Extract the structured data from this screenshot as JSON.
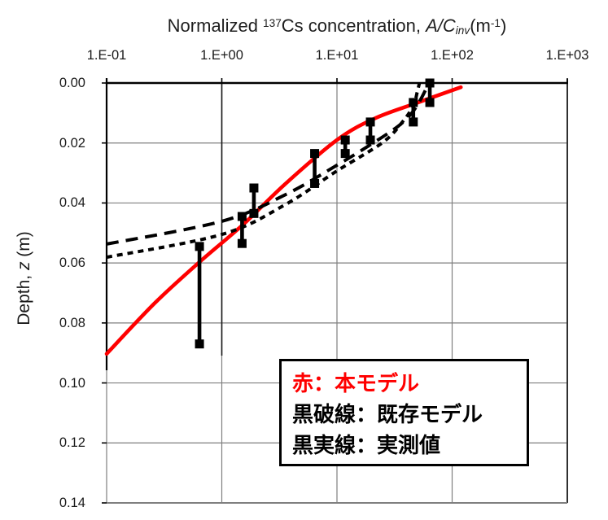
{
  "title": {
    "part1": "Normalized ",
    "isotope_mass": "137",
    "part2": "Cs concentration, ",
    "ratio": "A/C",
    "ratio_subscript": "inv",
    "unit_open": "(m",
    "unit_exponent": "-1",
    "unit_close": ")"
  },
  "y_axis_label": {
    "part1": "Depth, ",
    "var": "z",
    "part2": " (m)"
  },
  "legend": {
    "entries": [
      {
        "text": "赤：本モデル",
        "color": "#ff0000"
      },
      {
        "text": "黒破線：既存モデル",
        "color": "#000000"
      },
      {
        "text": "黒実線：実測値",
        "color": "#000000"
      }
    ]
  },
  "chart_data": {
    "type": "line",
    "title": "Normalized 137Cs concentration, A/Cinv (m-1)",
    "xlabel": "Normalized 137Cs concentration, A/Cinv (m-1)",
    "ylabel": "Depth, z (m)",
    "grid": true,
    "x_axis": {
      "scale": "log",
      "position": "top",
      "range": [
        0.1,
        1000
      ],
      "ticks": [
        {
          "label": "1.E-01",
          "value": 0.1
        },
        {
          "label": "1.E+00",
          "value": 1
        },
        {
          "label": "1.E+01",
          "value": 10
        },
        {
          "label": "1.E+02",
          "value": 100
        },
        {
          "label": "1.E+03",
          "value": 1000
        }
      ]
    },
    "y_axis": {
      "scale": "linear",
      "direction": "depth-downward",
      "range": [
        0,
        0.14
      ],
      "ticks": [
        {
          "label": "0.00",
          "value": 0.0
        },
        {
          "label": "0.02",
          "value": 0.02
        },
        {
          "label": "0.04",
          "value": 0.04
        },
        {
          "label": "0.06",
          "value": 0.06
        },
        {
          "label": "0.08",
          "value": 0.08
        },
        {
          "label": "0.10",
          "value": 0.1
        },
        {
          "label": "0.12",
          "value": 0.12
        },
        {
          "label": "0.14",
          "value": 0.14
        }
      ]
    },
    "series": [
      {
        "name": "本モデル",
        "line_style": "solid",
        "color": "#ff0000",
        "width": 4.6,
        "points": [
          [
            0.1,
            0.0903
          ],
          [
            0.26,
            0.0735
          ],
          [
            0.64,
            0.0597
          ],
          [
            1.5,
            0.0475
          ],
          [
            3.5,
            0.0339
          ],
          [
            10,
            0.019
          ],
          [
            21,
            0.0119
          ],
          [
            48,
            0.0068
          ],
          [
            119,
            0.0014
          ]
        ]
      },
      {
        "name": "既存モデル（長破線）",
        "line_style": "long-dash",
        "color": "#000000",
        "width": 4,
        "points": [
          [
            0.1,
            0.0537
          ],
          [
            1.0,
            0.0461
          ],
          [
            3.5,
            0.0374
          ],
          [
            10,
            0.0274
          ],
          [
            21,
            0.0198
          ],
          [
            34,
            0.0144
          ],
          [
            44,
            0.0103
          ],
          [
            52,
            0.0062
          ],
          [
            59,
            0.0022
          ],
          [
            63,
            0.0
          ]
        ]
      },
      {
        "name": "既存モデル（短破線）",
        "line_style": "short-dash",
        "color": "#000000",
        "width": 4,
        "points": [
          [
            0.1,
            0.0581
          ],
          [
            1.0,
            0.0505
          ],
          [
            3.5,
            0.0407
          ],
          [
            10,
            0.0293
          ],
          [
            25,
            0.0198
          ],
          [
            37,
            0.013
          ],
          [
            46,
            0.0076
          ],
          [
            50,
            0.0027
          ],
          [
            52,
            0.0
          ]
        ]
      }
    ],
    "measured_intervals": {
      "name": "実測値",
      "color": "#000000",
      "bars": [
        {
          "concentration": 64,
          "depth_from": 0.0,
          "depth_to": 0.0065
        },
        {
          "concentration": 46,
          "depth_from": 0.0065,
          "depth_to": 0.013
        },
        {
          "concentration": 19.5,
          "depth_from": 0.013,
          "depth_to": 0.019
        },
        {
          "concentration": 11.8,
          "depth_from": 0.019,
          "depth_to": 0.0235
        },
        {
          "concentration": 6.4,
          "depth_from": 0.0235,
          "depth_to": 0.0335
        },
        {
          "concentration": 1.9,
          "depth_from": 0.035,
          "depth_to": 0.0435
        },
        {
          "concentration": 1.5,
          "depth_from": 0.0445,
          "depth_to": 0.0535
        },
        {
          "concentration": 0.64,
          "depth_from": 0.0545,
          "depth_to": 0.087
        }
      ]
    }
  }
}
